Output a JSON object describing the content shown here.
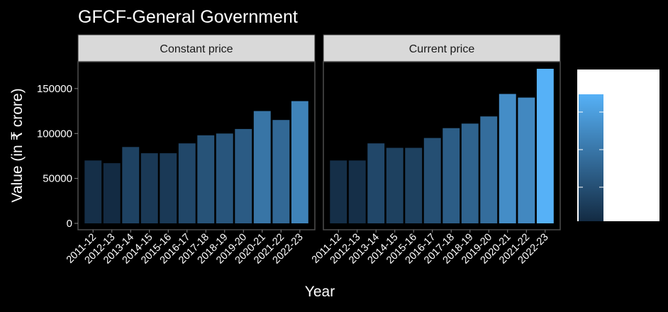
{
  "chart_data": {
    "type": "bar",
    "title": "GFCF-General Government",
    "xlabel": "Year",
    "ylabel": "Value (in ₹ crore)",
    "ylim": [
      0,
      185000
    ],
    "yticks": [
      0,
      50000,
      100000,
      150000
    ],
    "ytick_labels": [
      "0",
      "50000",
      "100000",
      "150000"
    ],
    "categories": [
      "2011-12",
      "2012-13",
      "2013-14",
      "2014-15",
      "2015-16",
      "2016-17",
      "2017-18",
      "2018-19",
      "2019-20",
      "2020-21",
      "2021-22",
      "2022-23"
    ],
    "facets": [
      {
        "name": "Constant price",
        "values": [
          70000,
          67000,
          85000,
          78000,
          78000,
          89000,
          98000,
          100000,
          105000,
          125000,
          115000,
          136000
        ]
      },
      {
        "name": "Current price",
        "values": [
          70000,
          70000,
          89000,
          84000,
          84000,
          95000,
          106000,
          111000,
          119000,
          144000,
          140000,
          172000
        ]
      }
    ],
    "color_scale": {
      "low": "#132B43",
      "high": "#56B1F7",
      "min": 67000,
      "max": 172000
    },
    "legend": "right",
    "grid": false
  }
}
